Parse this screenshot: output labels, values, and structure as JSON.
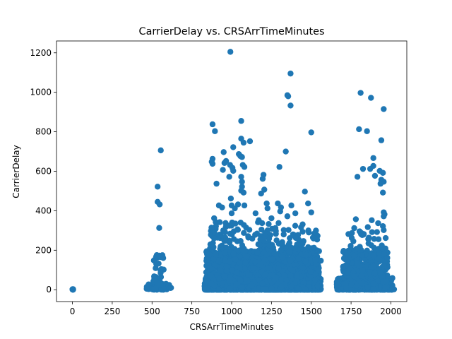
{
  "chart_data": {
    "type": "scatter",
    "title": "CarrierDelay vs. CRSArrTimeMinutes",
    "xlabel": "CRSArrTimeMinutes",
    "ylabel": "CarrierDelay",
    "xlim": [
      -100,
      2100
    ],
    "ylim": [
      -60,
      1260
    ],
    "xticks": [
      0,
      250,
      500,
      750,
      1000,
      1250,
      1500,
      1750,
      2000
    ],
    "yticks": [
      0,
      200,
      400,
      600,
      800,
      1000,
      1200
    ],
    "grid": false,
    "legend": "none",
    "color": "#1f77b4",
    "clusters": [
      {
        "x_range": [
          0,
          5
        ],
        "y_range": [
          0,
          3
        ],
        "count": 12
      },
      {
        "x_range": [
          465,
          620
        ],
        "y_range": [
          0,
          30
        ],
        "count": 60
      },
      {
        "x_range": [
          505,
          575
        ],
        "y_range": [
          0,
          180
        ],
        "count": 40
      },
      {
        "x_range": [
          830,
          1560
        ],
        "y_range": [
          0,
          60
        ],
        "count": 2600
      },
      {
        "x_range": [
          840,
          1550
        ],
        "y_range": [
          0,
          200
        ],
        "count": 1800
      },
      {
        "x_range": [
          860,
          1540
        ],
        "y_range": [
          0,
          350
        ],
        "count": 500
      },
      {
        "x_range": [
          1660,
          2010
        ],
        "y_range": [
          0,
          60
        ],
        "count": 700
      },
      {
        "x_range": [
          1700,
          1980
        ],
        "y_range": [
          0,
          200
        ],
        "count": 500
      },
      {
        "x_range": [
          1720,
          1970
        ],
        "y_range": [
          0,
          300
        ],
        "count": 80
      }
    ],
    "points": [
      {
        "x": 992,
        "y": 1205
      },
      {
        "x": 1370,
        "y": 1095
      },
      {
        "x": 1350,
        "y": 985
      },
      {
        "x": 1355,
        "y": 980
      },
      {
        "x": 1370,
        "y": 933
      },
      {
        "x": 1500,
        "y": 797
      },
      {
        "x": 1060,
        "y": 855
      },
      {
        "x": 880,
        "y": 838
      },
      {
        "x": 895,
        "y": 803
      },
      {
        "x": 1810,
        "y": 997
      },
      {
        "x": 1875,
        "y": 972
      },
      {
        "x": 1955,
        "y": 915
      },
      {
        "x": 1800,
        "y": 813
      },
      {
        "x": 1850,
        "y": 803
      },
      {
        "x": 1940,
        "y": 757
      },
      {
        "x": 555,
        "y": 706
      },
      {
        "x": 535,
        "y": 522
      },
      {
        "x": 535,
        "y": 445
      },
      {
        "x": 548,
        "y": 432
      },
      {
        "x": 545,
        "y": 313
      },
      {
        "x": 555,
        "y": 165
      },
      {
        "x": 565,
        "y": 175
      },
      {
        "x": 530,
        "y": 130
      },
      {
        "x": 1060,
        "y": 765
      },
      {
        "x": 1075,
        "y": 745
      },
      {
        "x": 1115,
        "y": 752
      },
      {
        "x": 1010,
        "y": 722
      },
      {
        "x": 950,
        "y": 697
      },
      {
        "x": 1045,
        "y": 687
      },
      {
        "x": 1055,
        "y": 677
      },
      {
        "x": 1065,
        "y": 672
      },
      {
        "x": 880,
        "y": 663
      },
      {
        "x": 875,
        "y": 648
      },
      {
        "x": 880,
        "y": 638
      },
      {
        "x": 955,
        "y": 642
      },
      {
        "x": 965,
        "y": 652
      },
      {
        "x": 990,
        "y": 632
      },
      {
        "x": 1070,
        "y": 632
      },
      {
        "x": 1080,
        "y": 622
      },
      {
        "x": 945,
        "y": 607
      },
      {
        "x": 1005,
        "y": 617
      },
      {
        "x": 1300,
        "y": 622
      },
      {
        "x": 1340,
        "y": 700
      },
      {
        "x": 985,
        "y": 572
      },
      {
        "x": 1010,
        "y": 602
      },
      {
        "x": 1060,
        "y": 572
      },
      {
        "x": 1200,
        "y": 582
      },
      {
        "x": 1195,
        "y": 562
      },
      {
        "x": 1065,
        "y": 547
      },
      {
        "x": 905,
        "y": 537
      },
      {
        "x": 1065,
        "y": 522
      },
      {
        "x": 1205,
        "y": 507
      },
      {
        "x": 1060,
        "y": 502
      },
      {
        "x": 1075,
        "y": 492
      },
      {
        "x": 1185,
        "y": 487
      },
      {
        "x": 1460,
        "y": 497
      },
      {
        "x": 995,
        "y": 462
      },
      {
        "x": 1220,
        "y": 437
      },
      {
        "x": 1000,
        "y": 427
      },
      {
        "x": 1040,
        "y": 432
      },
      {
        "x": 1080,
        "y": 427
      },
      {
        "x": 1290,
        "y": 437
      },
      {
        "x": 1375,
        "y": 427
      },
      {
        "x": 1480,
        "y": 437
      },
      {
        "x": 920,
        "y": 427
      },
      {
        "x": 940,
        "y": 417
      },
      {
        "x": 1020,
        "y": 412
      },
      {
        "x": 1225,
        "y": 412
      },
      {
        "x": 1310,
        "y": 417
      },
      {
        "x": 1305,
        "y": 397
      },
      {
        "x": 1150,
        "y": 387
      },
      {
        "x": 1000,
        "y": 387
      },
      {
        "x": 1400,
        "y": 387
      },
      {
        "x": 1350,
        "y": 372
      },
      {
        "x": 1500,
        "y": 392
      },
      {
        "x": 1250,
        "y": 362
      },
      {
        "x": 890,
        "y": 362
      },
      {
        "x": 1170,
        "y": 352
      },
      {
        "x": 1890,
        "y": 667
      },
      {
        "x": 1890,
        "y": 627
      },
      {
        "x": 1870,
        "y": 612
      },
      {
        "x": 1825,
        "y": 612
      },
      {
        "x": 1930,
        "y": 602
      },
      {
        "x": 1950,
        "y": 592
      },
      {
        "x": 1900,
        "y": 577
      },
      {
        "x": 1790,
        "y": 572
      },
      {
        "x": 1940,
        "y": 557
      },
      {
        "x": 1955,
        "y": 547
      },
      {
        "x": 1935,
        "y": 537
      },
      {
        "x": 1950,
        "y": 492
      },
      {
        "x": 1955,
        "y": 392
      },
      {
        "x": 1960,
        "y": 382
      },
      {
        "x": 1955,
        "y": 372
      },
      {
        "x": 1880,
        "y": 352
      },
      {
        "x": 1780,
        "y": 357
      },
      {
        "x": 1920,
        "y": 337
      },
      {
        "x": 1950,
        "y": 322
      },
      {
        "x": 1855,
        "y": 317
      },
      {
        "x": 1770,
        "y": 312
      },
      {
        "x": 1955,
        "y": 302
      },
      {
        "x": 1815,
        "y": 287
      },
      {
        "x": 1830,
        "y": 282
      },
      {
        "x": 1820,
        "y": 277
      },
      {
        "x": 1700,
        "y": 117
      },
      {
        "x": 1670,
        "y": 25
      },
      {
        "x": 1560,
        "y": 147
      },
      {
        "x": 1545,
        "y": 97
      },
      {
        "x": 2020,
        "y": 2
      },
      {
        "x": 2010,
        "y": 2
      }
    ]
  }
}
